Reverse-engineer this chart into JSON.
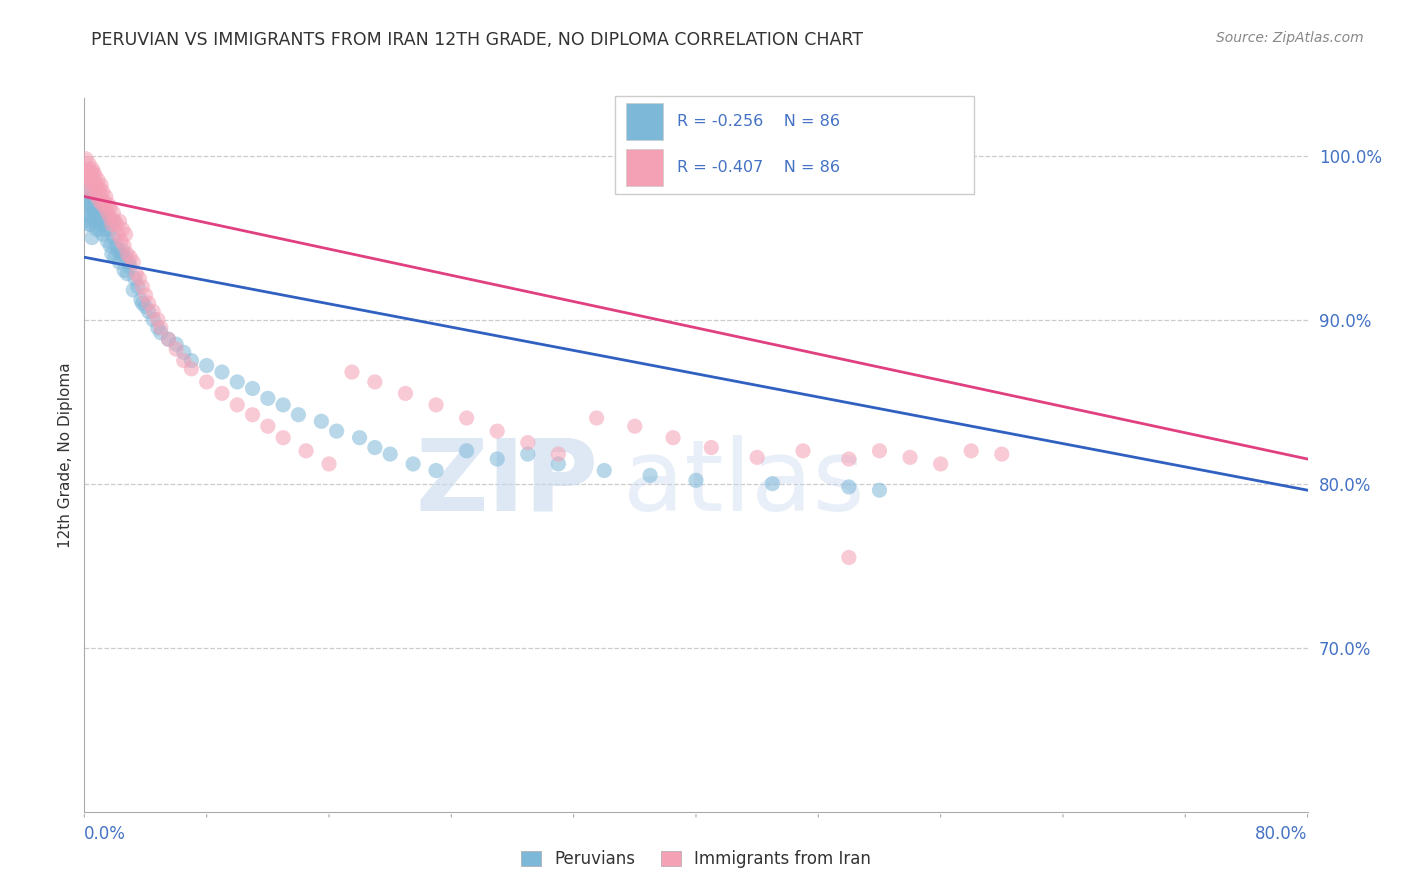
{
  "title": "PERUVIAN VS IMMIGRANTS FROM IRAN 12TH GRADE, NO DIPLOMA CORRELATION CHART",
  "source": "Source: ZipAtlas.com",
  "ylabel": "12th Grade, No Diploma",
  "xlim": [
    0.0,
    0.8
  ],
  "ylim": [
    0.6,
    1.035
  ],
  "yticks": [
    0.7,
    0.8,
    0.9,
    1.0
  ],
  "ytick_labels": [
    "70.0%",
    "80.0%",
    "90.0%",
    "100.0%"
  ],
  "blue_R": "-0.256",
  "blue_N": "86",
  "pink_R": "-0.407",
  "pink_N": "86",
  "legend_label_blue": "Peruvians",
  "legend_label_pink": "Immigrants from Iran",
  "blue_color": "#7eb8d9",
  "pink_color": "#f4a0b5",
  "blue_line_color": "#3060c0",
  "pink_line_color": "#e04080",
  "watermark_zip": "ZIP",
  "watermark_atlas": "atlas",
  "background_color": "#ffffff",
  "blue_line_x0": 0.0,
  "blue_line_y0": 0.938,
  "blue_line_x1": 0.8,
  "blue_line_y1": 0.796,
  "pink_line_x0": 0.0,
  "pink_line_y0": 0.975,
  "pink_line_x1": 0.8,
  "pink_line_y1": 0.815,
  "blue_scatter_x": [
    0.001,
    0.002,
    0.002,
    0.003,
    0.003,
    0.003,
    0.004,
    0.004,
    0.004,
    0.005,
    0.005,
    0.005,
    0.006,
    0.006,
    0.007,
    0.007,
    0.007,
    0.008,
    0.008,
    0.009,
    0.009,
    0.01,
    0.01,
    0.011,
    0.011,
    0.012,
    0.012,
    0.013,
    0.014,
    0.014,
    0.015,
    0.016,
    0.017,
    0.017,
    0.018,
    0.019,
    0.019,
    0.02,
    0.021,
    0.022,
    0.023,
    0.024,
    0.025,
    0.026,
    0.027,
    0.028,
    0.029,
    0.03,
    0.032,
    0.033,
    0.035,
    0.037,
    0.038,
    0.04,
    0.042,
    0.045,
    0.048,
    0.05,
    0.055,
    0.06,
    0.065,
    0.07,
    0.08,
    0.09,
    0.1,
    0.11,
    0.12,
    0.13,
    0.14,
    0.155,
    0.165,
    0.18,
    0.19,
    0.2,
    0.215,
    0.23,
    0.25,
    0.27,
    0.29,
    0.31,
    0.34,
    0.37,
    0.4,
    0.45,
    0.5,
    0.52
  ],
  "blue_scatter_y": [
    0.97,
    0.965,
    0.98,
    0.96,
    0.958,
    0.975,
    0.962,
    0.97,
    0.958,
    0.968,
    0.972,
    0.95,
    0.965,
    0.975,
    0.97,
    0.965,
    0.978,
    0.96,
    0.955,
    0.968,
    0.972,
    0.955,
    0.962,
    0.958,
    0.965,
    0.952,
    0.96,
    0.958,
    0.965,
    0.955,
    0.948,
    0.96,
    0.945,
    0.955,
    0.94,
    0.95,
    0.96,
    0.938,
    0.945,
    0.942,
    0.935,
    0.94,
    0.942,
    0.93,
    0.938,
    0.928,
    0.935,
    0.932,
    0.918,
    0.925,
    0.92,
    0.912,
    0.91,
    0.908,
    0.905,
    0.9,
    0.895,
    0.892,
    0.888,
    0.885,
    0.88,
    0.875,
    0.872,
    0.868,
    0.862,
    0.858,
    0.852,
    0.848,
    0.842,
    0.838,
    0.832,
    0.828,
    0.822,
    0.818,
    0.812,
    0.808,
    0.82,
    0.815,
    0.818,
    0.812,
    0.808,
    0.805,
    0.802,
    0.8,
    0.798,
    0.796
  ],
  "pink_scatter_x": [
    0.001,
    0.001,
    0.002,
    0.002,
    0.003,
    0.003,
    0.003,
    0.004,
    0.004,
    0.005,
    0.005,
    0.006,
    0.006,
    0.007,
    0.007,
    0.008,
    0.008,
    0.009,
    0.009,
    0.01,
    0.01,
    0.011,
    0.011,
    0.012,
    0.012,
    0.013,
    0.014,
    0.014,
    0.015,
    0.016,
    0.017,
    0.017,
    0.018,
    0.019,
    0.02,
    0.021,
    0.022,
    0.023,
    0.024,
    0.025,
    0.026,
    0.027,
    0.028,
    0.03,
    0.032,
    0.034,
    0.036,
    0.038,
    0.04,
    0.042,
    0.045,
    0.048,
    0.05,
    0.055,
    0.06,
    0.065,
    0.07,
    0.08,
    0.09,
    0.1,
    0.11,
    0.12,
    0.13,
    0.145,
    0.16,
    0.175,
    0.19,
    0.21,
    0.23,
    0.25,
    0.27,
    0.29,
    0.31,
    0.335,
    0.36,
    0.385,
    0.41,
    0.44,
    0.47,
    0.5,
    0.52,
    0.54,
    0.56,
    0.58,
    0.6,
    0.5
  ],
  "pink_scatter_y": [
    0.998,
    0.988,
    0.992,
    0.985,
    0.995,
    0.98,
    0.988,
    0.99,
    0.985,
    0.992,
    0.978,
    0.985,
    0.99,
    0.98,
    0.988,
    0.982,
    0.975,
    0.985,
    0.978,
    0.98,
    0.972,
    0.975,
    0.982,
    0.97,
    0.978,
    0.972,
    0.968,
    0.975,
    0.965,
    0.97,
    0.962,
    0.968,
    0.958,
    0.965,
    0.96,
    0.958,
    0.952,
    0.96,
    0.948,
    0.955,
    0.945,
    0.952,
    0.94,
    0.938,
    0.935,
    0.928,
    0.925,
    0.92,
    0.915,
    0.91,
    0.905,
    0.9,
    0.895,
    0.888,
    0.882,
    0.875,
    0.87,
    0.862,
    0.855,
    0.848,
    0.842,
    0.835,
    0.828,
    0.82,
    0.812,
    0.868,
    0.862,
    0.855,
    0.848,
    0.84,
    0.832,
    0.825,
    0.818,
    0.84,
    0.835,
    0.828,
    0.822,
    0.816,
    0.82,
    0.815,
    0.82,
    0.816,
    0.812,
    0.82,
    0.818,
    0.755
  ]
}
